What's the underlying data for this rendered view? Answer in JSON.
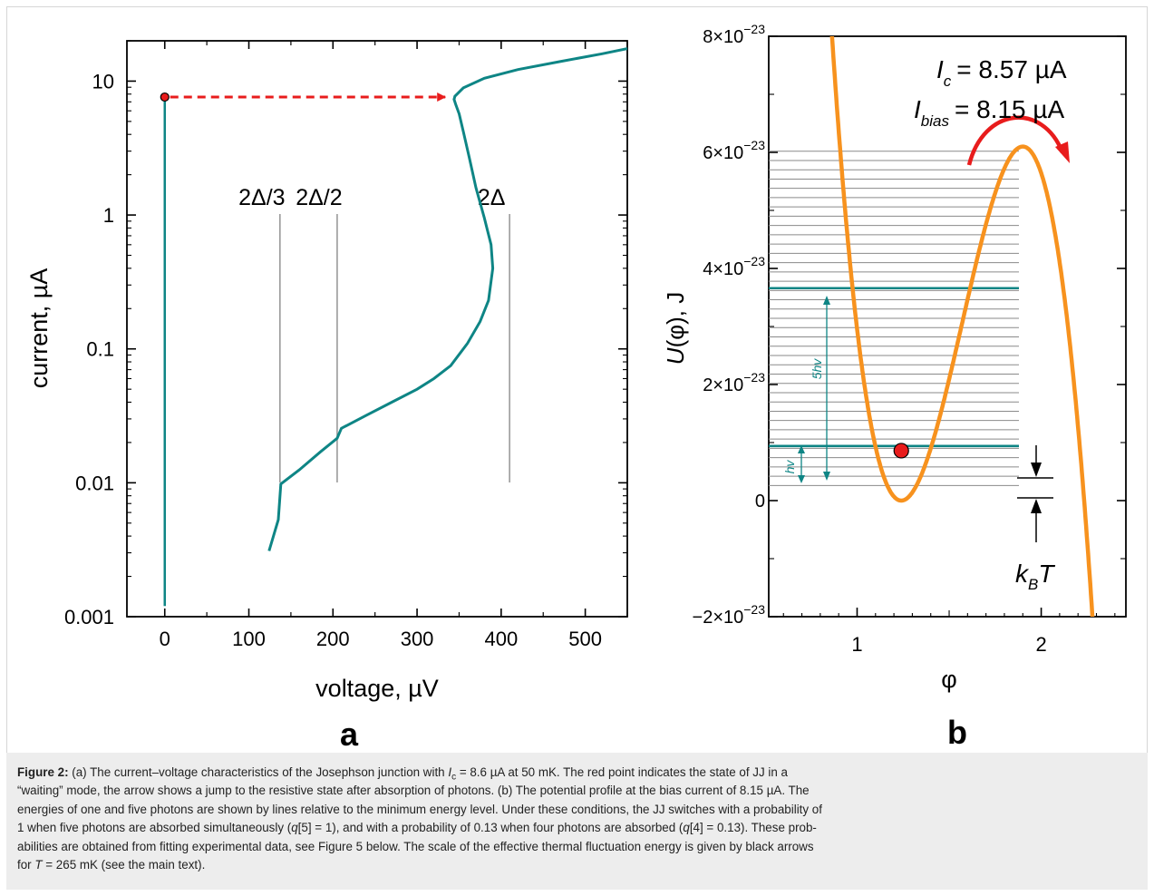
{
  "chart_data": [
    {
      "type": "line",
      "panel_label": "a",
      "xlabel": "voltage, µV",
      "ylabel": "current, µA",
      "xlim": [
        -45,
        550
      ],
      "ylim": [
        0.001,
        20
      ],
      "yscale": "log",
      "x_ticks": [
        "0",
        "100",
        "200",
        "300",
        "400",
        "500"
      ],
      "y_ticks": [
        "0.001",
        "0.01",
        "0.1",
        "1",
        "10"
      ],
      "color": "#0e8585",
      "series": [
        {
          "x": [
            124,
            135,
            138,
            160,
            185,
            205,
            210,
            240,
            270,
            300,
            320,
            340,
            360,
            375,
            385,
            390,
            388,
            380,
            370,
            362,
            355,
            350,
            346,
            344,
            345,
            355,
            380,
            420,
            470,
            520,
            550
          ],
          "y": [
            0.0031,
            0.0053,
            0.0098,
            0.0125,
            0.017,
            0.0215,
            0.0255,
            0.032,
            0.04,
            0.05,
            0.06,
            0.075,
            0.11,
            0.16,
            0.23,
            0.4,
            0.6,
            0.95,
            1.6,
            2.7,
            4.2,
            5.7,
            6.7,
            7.3,
            7.7,
            8.9,
            10.5,
            12.2,
            14.0,
            16.0,
            17.5
          ]
        },
        {
          "x": [
            0,
            0,
            0,
            0,
            0
          ],
          "y": [
            0.0012,
            0.01,
            0.1,
            1,
            7.6
          ]
        }
      ],
      "reference_lines": [
        {
          "label": "2Δ/3",
          "x": 137
        },
        {
          "label": "2Δ/2",
          "x": 205
        },
        {
          "label": "2Δ",
          "x": 410
        }
      ],
      "marker": {
        "x": 0,
        "y": 7.6,
        "color": "#e81c1c"
      },
      "jump_arrow": {
        "from_x": 0,
        "to_x": 340,
        "y": 7.6,
        "color": "#e81c1c"
      }
    },
    {
      "type": "line",
      "panel_label": "b",
      "xlabel": "φ",
      "ylabel": "U(φ), J",
      "xlim": [
        0.52,
        2.46
      ],
      "ylim": [
        -2e-23,
        8e-23
      ],
      "x_ticks": [
        "1",
        "2"
      ],
      "y_ticks": [
        {
          "mant": "−2×10",
          "exp": "−23"
        },
        {
          "mant": "0",
          "exp": ""
        },
        {
          "mant": "2×10",
          "exp": "−23"
        },
        {
          "mant": "4×10",
          "exp": "−23"
        },
        {
          "mant": "6×10",
          "exp": "−23"
        },
        {
          "mant": "8×10",
          "exp": "−23"
        }
      ],
      "color": "#f7921e",
      "annotations": {
        "ic_pre": "I",
        "ic_sub": "c",
        "ic_val": "= 8.57 µA",
        "ibias_pre": "I",
        "ibias_sub": "bias",
        "ibias_val": "= 8.15 µA",
        "hv": "hv",
        "five_hv": "5hv",
        "kbt_pre": "k",
        "kbt_sub": "B",
        "kbt_post": "T"
      },
      "energy_levels_gray": [
        2.6e-24,
        4.2e-24,
        5.8e-24,
        7.4e-24,
        9e-24,
        1.06e-23,
        1.22e-23,
        1.38e-23,
        1.54e-23,
        1.7e-23,
        1.86e-23,
        2.02e-23,
        2.18e-23,
        2.34e-23,
        2.5e-23,
        2.66e-23,
        2.82e-23,
        2.98e-23,
        3.14e-23,
        3.3e-23,
        3.46e-23,
        3.62e-23,
        3.78e-23,
        3.94e-23,
        4.1e-23,
        4.26e-23,
        4.42e-23,
        4.58e-23,
        4.74e-23,
        4.9e-23,
        5.06e-23,
        5.22e-23,
        5.38e-23,
        5.54e-23,
        5.7e-23,
        5.86e-23,
        6.02e-23
      ],
      "energy_levels_teal": [
        9.4e-24,
        3.66e-23
      ],
      "marker": {
        "x": 1.24,
        "y": 8.6e-24,
        "color": "#e81c1c"
      }
    }
  ],
  "caption": {
    "lines": [
      [
        {
          "t": "Figure 2:",
          "b": true
        },
        {
          "t": " (a) The current–voltage characteristics of the Josephson junction with "
        },
        {
          "t": "I",
          "i": true
        },
        {
          "t": "c",
          "sub": true
        },
        {
          "t": " = 8.6 µA at 50 mK. The red point indicates the state of JJ in a"
        }
      ],
      [
        {
          "t": "“waiting” mode, the arrow shows a jump to the resistive state after absorption of photons. (b) The potential profile at the bias current of 8.15 µA. The"
        }
      ],
      [
        {
          "t": "energies of one and five photons are shown by lines relative to the minimum energy level. Under these conditions, the JJ switches with a probability of"
        }
      ],
      [
        {
          "t": "1 when five photons are absorbed simultaneously ("
        },
        {
          "t": "q",
          "i": true
        },
        {
          "t": "[5] = 1), and with a probability of 0.13 when four photons are absorbed ("
        },
        {
          "t": "q",
          "i": true
        },
        {
          "t": "[4] = 0.13). These prob-"
        }
      ],
      [
        {
          "t": "abilities are obtained from fitting experimental data, see Figure 5 below. The scale of the effective thermal fluctuation energy is given by black arrows"
        }
      ],
      [
        {
          "t": "for "
        },
        {
          "t": "T",
          "i": true
        },
        {
          "t": " = 265 mK (see the main text)."
        }
      ]
    ]
  }
}
